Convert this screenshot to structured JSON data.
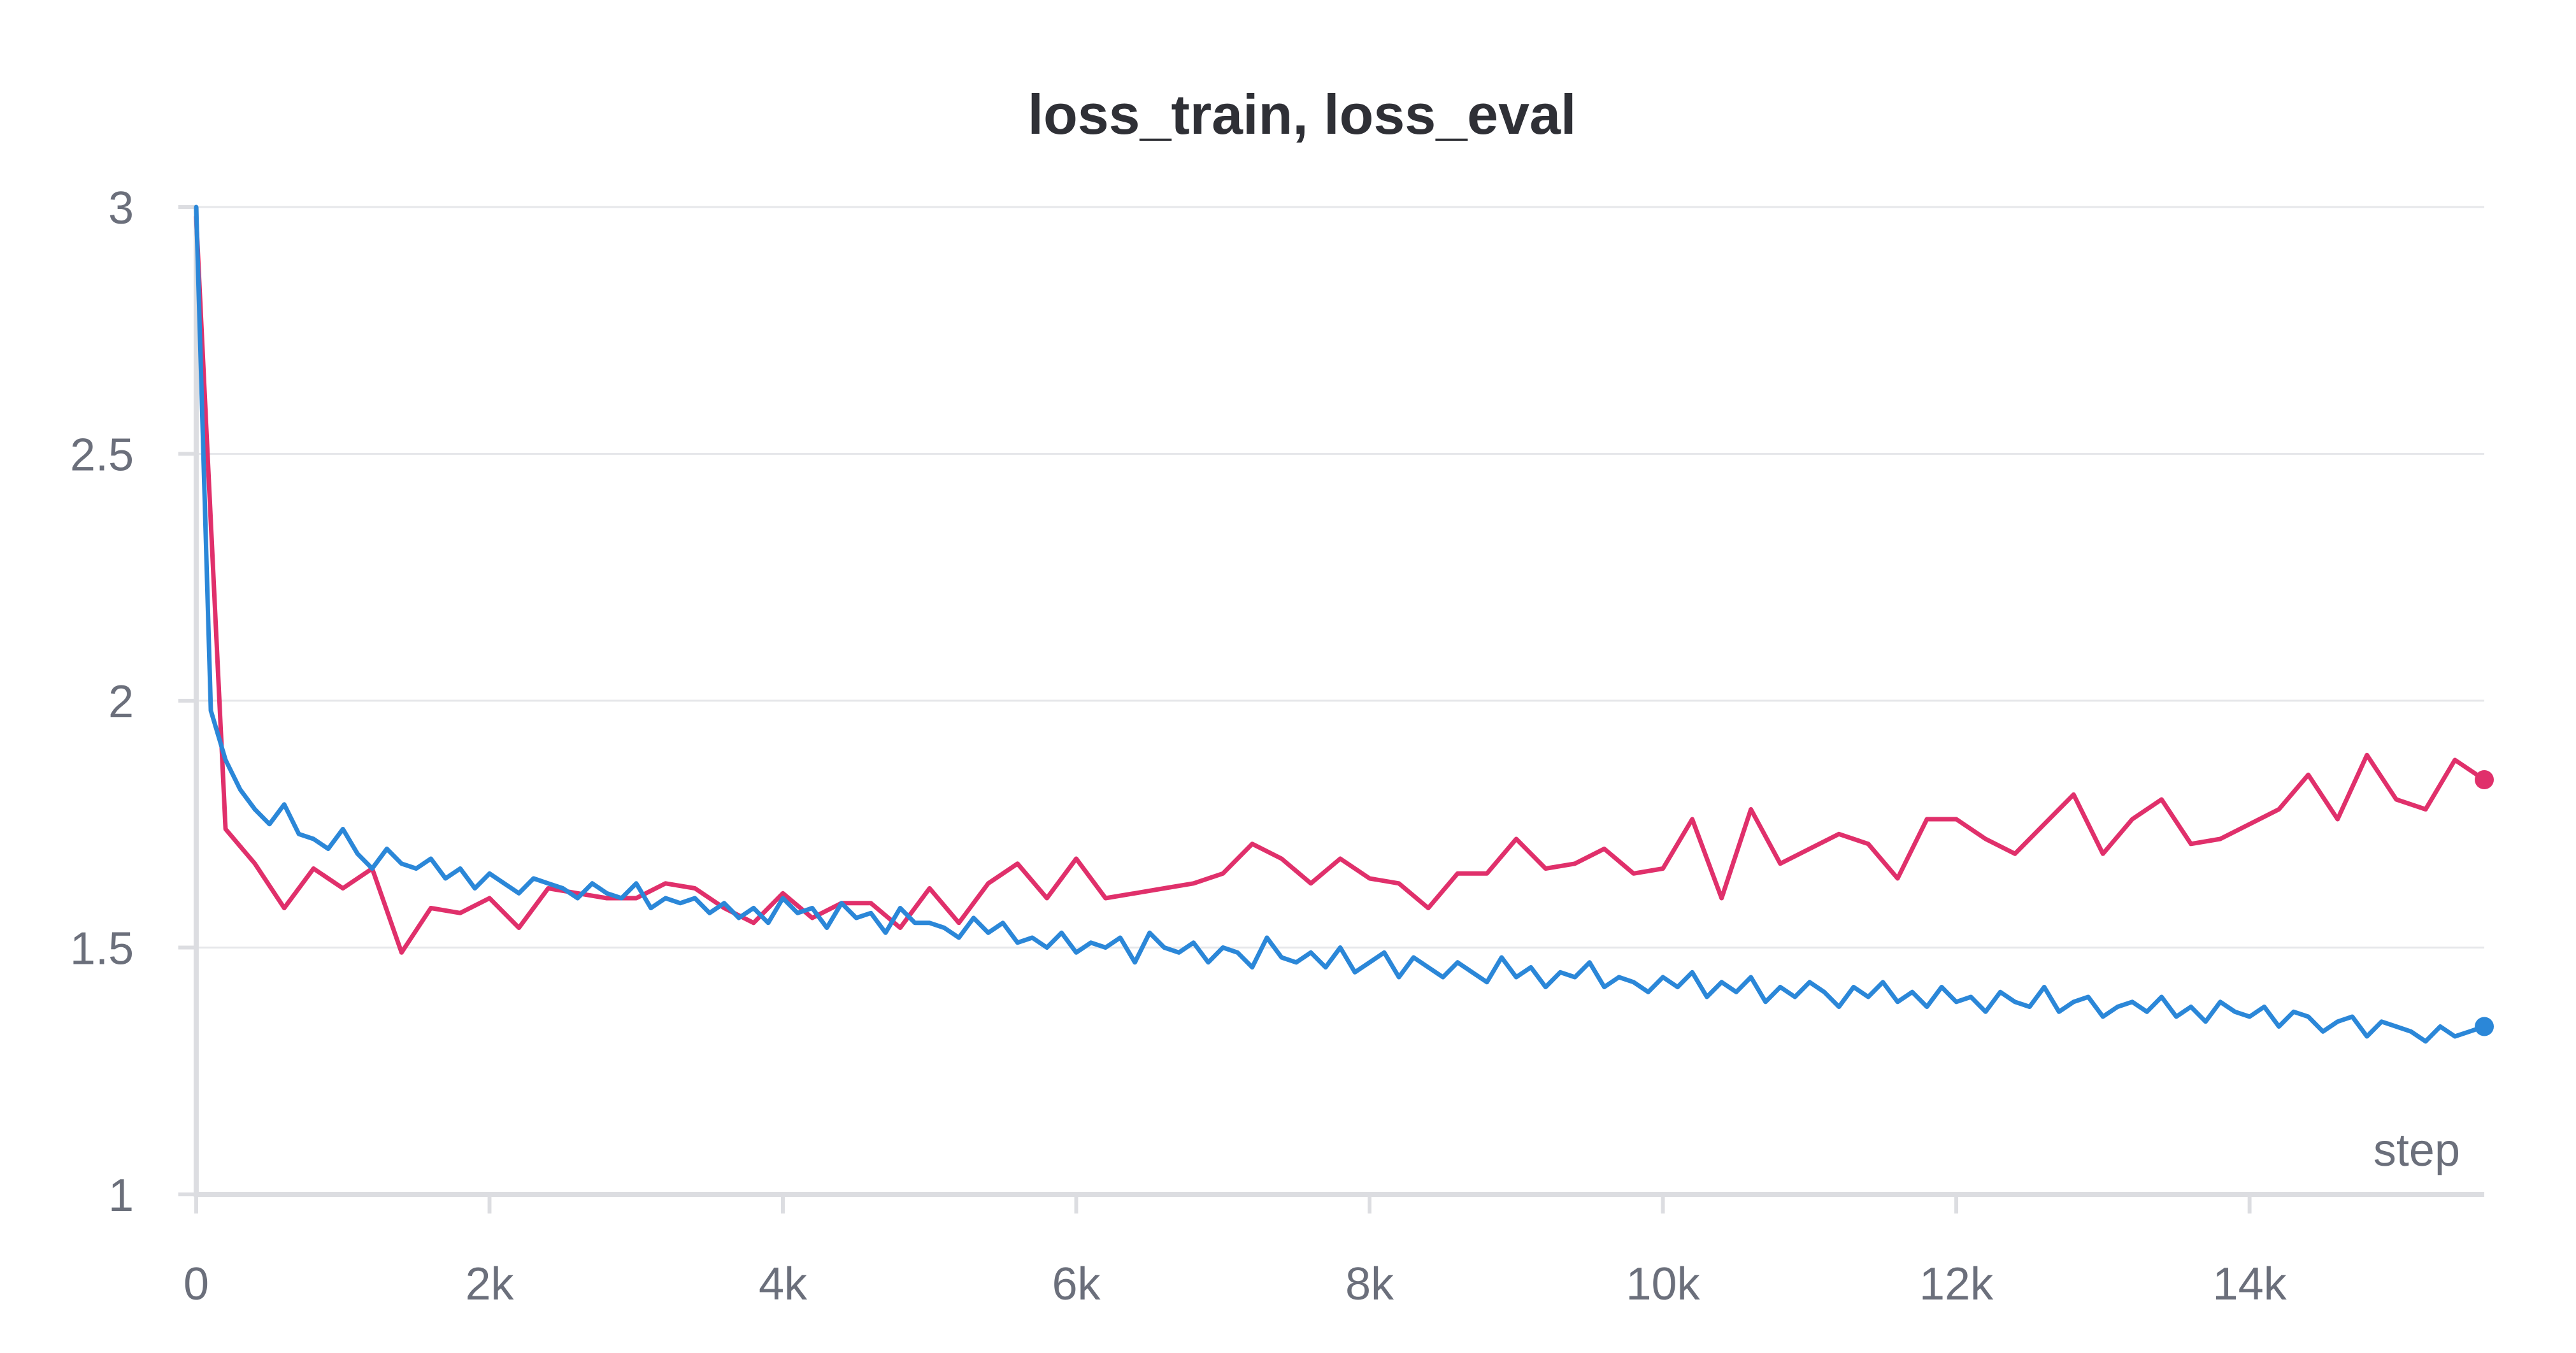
{
  "chart_data": {
    "type": "line",
    "title": "loss_train, loss_eval",
    "xlabel": "step",
    "ylabel": "",
    "xlim": [
      0,
      15600
    ],
    "ylim": [
      1,
      3
    ],
    "x_ticks": [
      {
        "value": 0,
        "label": "0"
      },
      {
        "value": 2000,
        "label": "2k"
      },
      {
        "value": 4000,
        "label": "4k"
      },
      {
        "value": 6000,
        "label": "6k"
      },
      {
        "value": 8000,
        "label": "8k"
      },
      {
        "value": 10000,
        "label": "10k"
      },
      {
        "value": 12000,
        "label": "12k"
      },
      {
        "value": 14000,
        "label": "14k"
      }
    ],
    "y_ticks": [
      {
        "value": 1,
        "label": "1"
      },
      {
        "value": 1.5,
        "label": "1.5"
      },
      {
        "value": 2,
        "label": "2"
      },
      {
        "value": 2.5,
        "label": "2.5"
      },
      {
        "value": 3,
        "label": "3"
      }
    ],
    "grid": true,
    "legend": "none",
    "series": [
      {
        "color": "#e0306b",
        "x": [
          0,
          200,
          400,
          600,
          800,
          1000,
          1200,
          1400,
          1600,
          1800,
          2000,
          2200,
          2400,
          2600,
          2800,
          3000,
          3200,
          3400,
          3600,
          3800,
          4000,
          4200,
          4400,
          4600,
          4800,
          5000,
          5200,
          5400,
          5600,
          5800,
          6000,
          6200,
          6400,
          6600,
          6800,
          7000,
          7200,
          7400,
          7600,
          7800,
          8000,
          8200,
          8400,
          8600,
          8800,
          9000,
          9200,
          9400,
          9600,
          9800,
          10000,
          10200,
          10400,
          10600,
          10800,
          11000,
          11200,
          11400,
          11600,
          11800,
          12000,
          12200,
          12400,
          12600,
          12800,
          13000,
          13200,
          13400,
          13600,
          13800,
          14000,
          14200,
          14400,
          14600,
          14800,
          15000,
          15200,
          15400,
          15600
        ],
        "y": [
          2.98,
          1.74,
          1.67,
          1.58,
          1.66,
          1.62,
          1.66,
          1.49,
          1.58,
          1.57,
          1.6,
          1.54,
          1.62,
          1.61,
          1.6,
          1.6,
          1.63,
          1.62,
          1.58,
          1.55,
          1.61,
          1.56,
          1.59,
          1.59,
          1.54,
          1.62,
          1.55,
          1.63,
          1.67,
          1.6,
          1.68,
          1.6,
          1.61,
          1.62,
          1.63,
          1.65,
          1.71,
          1.68,
          1.63,
          1.68,
          1.64,
          1.63,
          1.58,
          1.65,
          1.65,
          1.72,
          1.66,
          1.67,
          1.7,
          1.65,
          1.66,
          1.76,
          1.6,
          1.78,
          1.67,
          1.7,
          1.73,
          1.71,
          1.64,
          1.76,
          1.76,
          1.72,
          1.69,
          1.75,
          1.81,
          1.69,
          1.76,
          1.8,
          1.71,
          1.72,
          1.75,
          1.78,
          1.85,
          1.76,
          1.89,
          1.8,
          1.78,
          1.88,
          1.84
        ]
      },
      {
        "color": "#2b87d8",
        "x": [
          0,
          100,
          200,
          300,
          400,
          500,
          600,
          700,
          800,
          900,
          1000,
          1100,
          1200,
          1300,
          1400,
          1500,
          1600,
          1700,
          1800,
          1900,
          2000,
          2100,
          2200,
          2300,
          2400,
          2500,
          2600,
          2700,
          2800,
          2900,
          3000,
          3100,
          3200,
          3300,
          3400,
          3500,
          3600,
          3700,
          3800,
          3900,
          4000,
          4100,
          4200,
          4300,
          4400,
          4500,
          4600,
          4700,
          4800,
          4900,
          5000,
          5100,
          5200,
          5300,
          5400,
          5500,
          5600,
          5700,
          5800,
          5900,
          6000,
          6100,
          6200,
          6300,
          6400,
          6500,
          6600,
          6700,
          6800,
          6900,
          7000,
          7100,
          7200,
          7300,
          7400,
          7500,
          7600,
          7700,
          7800,
          7900,
          8000,
          8100,
          8200,
          8300,
          8400,
          8500,
          8600,
          8700,
          8800,
          8900,
          9000,
          9100,
          9200,
          9300,
          9400,
          9500,
          9600,
          9700,
          9800,
          9900,
          10000,
          10100,
          10200,
          10300,
          10400,
          10500,
          10600,
          10700,
          10800,
          10900,
          11000,
          11100,
          11200,
          11300,
          11400,
          11500,
          11600,
          11700,
          11800,
          11900,
          12000,
          12100,
          12200,
          12300,
          12400,
          12500,
          12600,
          12700,
          12800,
          12900,
          13000,
          13100,
          13200,
          13300,
          13400,
          13500,
          13600,
          13700,
          13800,
          13900,
          14000,
          14100,
          14200,
          14300,
          14400,
          14500,
          14600,
          14700,
          14800,
          14900,
          15000,
          15100,
          15200,
          15300,
          15400,
          15500,
          15600
        ],
        "y": [
          3.0,
          1.98,
          1.88,
          1.82,
          1.78,
          1.75,
          1.79,
          1.73,
          1.72,
          1.7,
          1.74,
          1.69,
          1.66,
          1.7,
          1.67,
          1.66,
          1.68,
          1.64,
          1.66,
          1.62,
          1.65,
          1.63,
          1.61,
          1.64,
          1.63,
          1.62,
          1.6,
          1.63,
          1.61,
          1.6,
          1.63,
          1.58,
          1.6,
          1.59,
          1.6,
          1.57,
          1.59,
          1.56,
          1.58,
          1.55,
          1.6,
          1.57,
          1.58,
          1.54,
          1.59,
          1.56,
          1.57,
          1.53,
          1.58,
          1.55,
          1.55,
          1.54,
          1.52,
          1.56,
          1.53,
          1.55,
          1.51,
          1.52,
          1.5,
          1.53,
          1.49,
          1.51,
          1.5,
          1.52,
          1.47,
          1.53,
          1.5,
          1.49,
          1.51,
          1.47,
          1.5,
          1.49,
          1.46,
          1.52,
          1.48,
          1.47,
          1.49,
          1.46,
          1.5,
          1.45,
          1.47,
          1.49,
          1.44,
          1.48,
          1.46,
          1.44,
          1.47,
          1.45,
          1.43,
          1.48,
          1.44,
          1.46,
          1.42,
          1.45,
          1.44,
          1.47,
          1.42,
          1.44,
          1.43,
          1.41,
          1.44,
          1.42,
          1.45,
          1.4,
          1.43,
          1.41,
          1.44,
          1.39,
          1.42,
          1.4,
          1.43,
          1.41,
          1.38,
          1.42,
          1.4,
          1.43,
          1.39,
          1.41,
          1.38,
          1.42,
          1.39,
          1.4,
          1.37,
          1.41,
          1.39,
          1.38,
          1.42,
          1.37,
          1.39,
          1.4,
          1.36,
          1.38,
          1.39,
          1.37,
          1.4,
          1.36,
          1.38,
          1.35,
          1.39,
          1.37,
          1.36,
          1.38,
          1.34,
          1.37,
          1.36,
          1.33,
          1.35,
          1.36,
          1.32,
          1.35,
          1.34,
          1.33,
          1.31,
          1.34,
          1.32,
          1.33,
          1.34
        ]
      }
    ]
  }
}
